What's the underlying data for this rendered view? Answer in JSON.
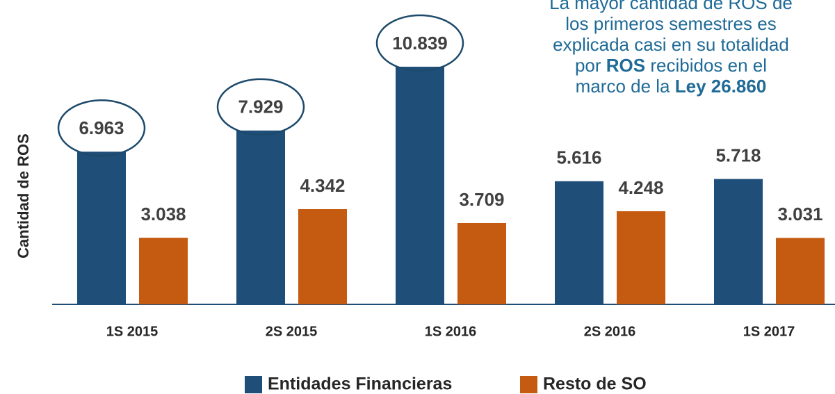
{
  "chart_data": {
    "type": "bar",
    "y_label": "Cantidad de ROS",
    "categories": [
      "1S 2015",
      "2S 2015",
      "1S 2016",
      "2S 2016",
      "1S 2017"
    ],
    "series": [
      {
        "name": "Entidades Financieras",
        "color": "#1f4e79",
        "values": [
          6963,
          7929,
          10839,
          5616,
          5718
        ],
        "value_labels": [
          "6.963",
          "7.929",
          "10.839",
          "5.616",
          "5.718"
        ],
        "circled": [
          0,
          1,
          2
        ]
      },
      {
        "name": "Resto de SO",
        "color": "#c55a11",
        "values": [
          3038,
          4342,
          3709,
          4248,
          3031
        ],
        "value_labels": [
          "3.038",
          "4.342",
          "3.709",
          "4.248",
          "3.031"
        ]
      }
    ],
    "legend": "bottom",
    "annotation": [
      [
        {
          "text": "La mayor cantidad de ROS de"
        }
      ],
      [
        {
          "text": "los primeros semestres es"
        }
      ],
      [
        {
          "text": "explicada casi en su totalidad"
        }
      ],
      [
        {
          "text": "por "
        },
        {
          "text": "ROS",
          "bold": true
        },
        {
          "text": " recibidos en el"
        }
      ],
      [
        {
          "text": "marco de la "
        },
        {
          "text": "Ley 26.860",
          "bold": true
        }
      ]
    ]
  }
}
